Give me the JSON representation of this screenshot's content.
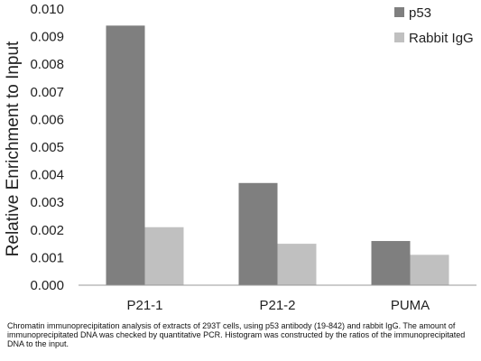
{
  "chart_data": {
    "type": "bar",
    "title": "",
    "xlabel": "",
    "ylabel": "Relative Enrichment to Input",
    "ylim": [
      0,
      0.01
    ],
    "yticks": [
      "0.000",
      "0.001",
      "0.002",
      "0.003",
      "0.004",
      "0.005",
      "0.006",
      "0.007",
      "0.008",
      "0.009",
      "0.010"
    ],
    "categories": [
      "P21-1",
      "P21-2",
      "PUMA"
    ],
    "series": [
      {
        "name": "p53",
        "color": "#7f7f7f",
        "values": [
          0.0094,
          0.0037,
          0.0016
        ]
      },
      {
        "name": "Rabbit IgG",
        "color": "#c0c0c0",
        "values": [
          0.0021,
          0.0015,
          0.0011
        ]
      }
    ],
    "grid": false,
    "legend_position": "top-right"
  },
  "caption": "Chromatin immunoprecipitation analysis of extracts of 293T cells, using p53 antibody (19-842) and rabbit IgG. The amount of immunoprecipitated DNA was checked by quantitative PCR. Histogram was constructed by the ratios of the immunoprecipitated DNA to the input."
}
